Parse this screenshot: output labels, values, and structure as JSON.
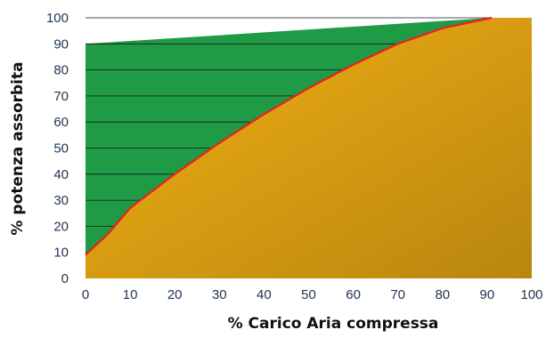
{
  "chart_data": {
    "type": "area",
    "title": "",
    "xlabel": "% Carico Aria compressa",
    "ylabel": "% potenza assorbita",
    "xlim": [
      0,
      100
    ],
    "ylim": [
      0,
      100
    ],
    "x_ticks": [
      "0",
      "10",
      "20",
      "30",
      "40",
      "50",
      "60",
      "70",
      "80",
      "90",
      "100"
    ],
    "y_ticks": [
      "0",
      "10",
      "20",
      "30",
      "40",
      "50",
      "60",
      "70",
      "80",
      "90",
      "100"
    ],
    "grid": "horizontal lines in the green region",
    "series": [
      {
        "x": [
          0,
          5,
          10,
          20,
          30,
          40,
          50,
          60,
          70,
          80,
          91
        ],
        "y": [
          9,
          17,
          27,
          40,
          52,
          63,
          73,
          82,
          90,
          96,
          100
        ]
      },
      {
        "x": [
          0,
          91
        ],
        "y": [
          90,
          100
        ]
      }
    ],
    "colors": {
      "green_fill": "#1f9a45",
      "orange_fill_light": "#f4b014",
      "orange_fill_dark": "#b8860f",
      "curve_line": "#e8231e",
      "grid_line": "#1a1a1a",
      "tick_text": "#1f3552"
    }
  }
}
